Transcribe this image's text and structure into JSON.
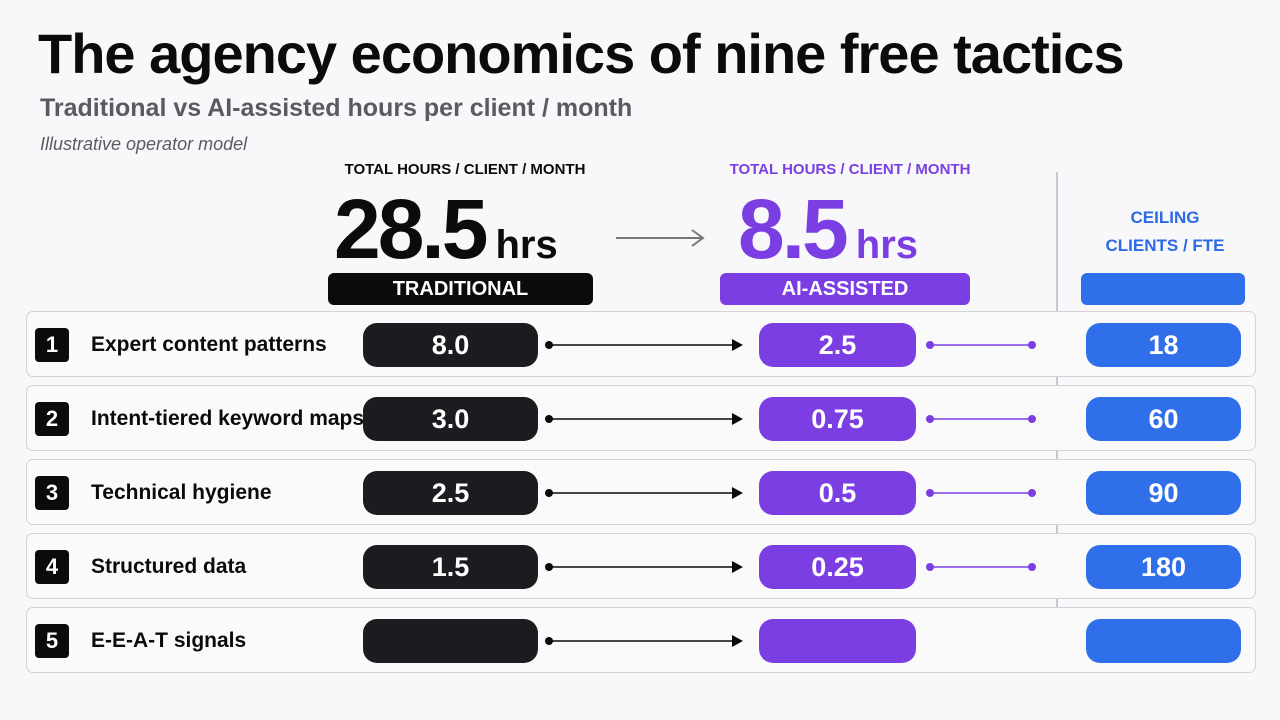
{
  "header": {
    "title": "The agency economics of nine free tactics",
    "subtitle": "Traditional vs AI-assisted hours per client / month",
    "note": "Illustrative operator model"
  },
  "kpis": {
    "traditional": {
      "caption": "TOTAL HOURS / CLIENT / MONTH",
      "value": "28.5",
      "unit": "hrs",
      "tag": "TRADITIONAL"
    },
    "ai": {
      "caption": "TOTAL HOURS / CLIENT / MONTH",
      "value": "8.5",
      "unit": "hrs",
      "tag": "AI-ASSISTED"
    },
    "ceiling": {
      "caption_line1": "CEILING",
      "caption_line2": "CLIENTS / FTE"
    }
  },
  "colors": {
    "traditional": "#1c1c20",
    "ai": "#7a3ee2",
    "ceiling": "#2f6fea",
    "connector": "#0b0b0d"
  },
  "chart_data": {
    "type": "table",
    "columns": [
      "Traditional",
      "AI-assisted",
      "Ceiling clients / FTE"
    ],
    "rows": [
      {
        "num": "1",
        "tactic": "Expert content patterns",
        "traditional": "8.0",
        "ai": "2.5",
        "ceiling": "18"
      },
      {
        "num": "2",
        "tactic": "Intent-tiered keyword maps",
        "traditional": "3.0",
        "ai": "0.75",
        "ceiling": "60"
      },
      {
        "num": "3",
        "tactic": "Technical hygiene",
        "traditional": "2.5",
        "ai": "0.5",
        "ceiling": "90"
      },
      {
        "num": "4",
        "tactic": "Structured data",
        "traditional": "1.5",
        "ai": "0.25",
        "ceiling": "180"
      },
      {
        "num": "5",
        "tactic": "E-E-A-T signals",
        "traditional": "",
        "ai": "",
        "ceiling": ""
      }
    ]
  }
}
